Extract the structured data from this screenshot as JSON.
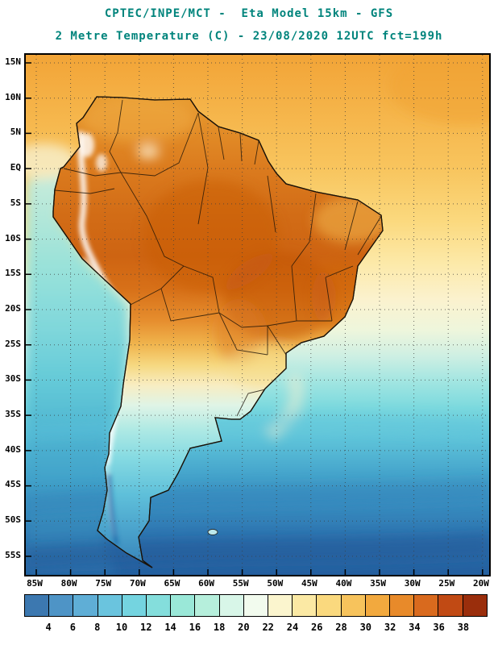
{
  "header": {
    "title_line1": "CPTEC/INPE/MCT -  Eta Model 15km - GFS",
    "title_line2": "2 Metre Temperature (C) - 23/08/2020 12UTC fct=199h",
    "title_color": "#00847C"
  },
  "map": {
    "y_ticks": [
      "15N",
      "10N",
      "5N",
      "EQ",
      "5S",
      "10S",
      "15S",
      "20S",
      "25S",
      "30S",
      "35S",
      "40S",
      "45S",
      "50S",
      "55S"
    ],
    "x_ticks": [
      "85W",
      "80W",
      "75W",
      "70W",
      "65W",
      "60W",
      "55W",
      "50W",
      "45W",
      "40W",
      "35W",
      "30W",
      "25W",
      "20W"
    ]
  },
  "colorbar": {
    "tick_labels": [
      "4",
      "6",
      "8",
      "10",
      "12",
      "14",
      "16",
      "18",
      "20",
      "22",
      "24",
      "26",
      "28",
      "30",
      "32",
      "34",
      "36",
      "38"
    ],
    "cell_colors": [
      "#3C78B0",
      "#4E94C6",
      "#5FAED6",
      "#6AC4DE",
      "#74D4E0",
      "#84DEDC",
      "#9AE8D8",
      "#B6EFDC",
      "#D8F6E8",
      "#F2FBEE",
      "#FBF5CE",
      "#FBE9A4",
      "#FAD97E",
      "#F7C35C",
      "#F2A93E",
      "#E88A2A",
      "#D96A1E",
      "#C14A14",
      "#9A2E0C"
    ]
  }
}
